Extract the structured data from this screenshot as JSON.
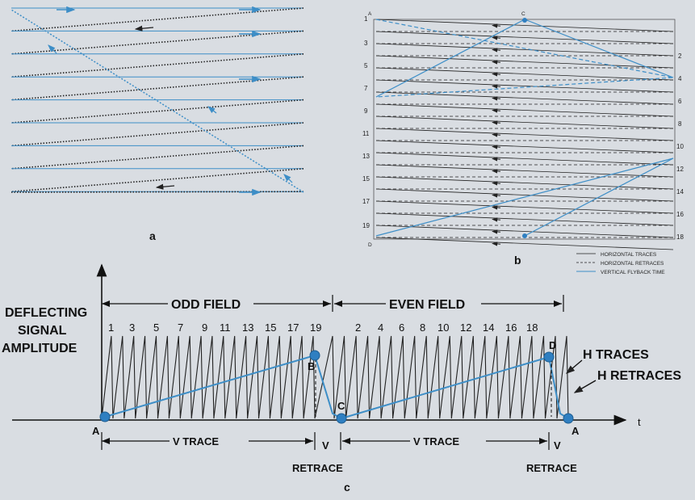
{
  "colors": {
    "background": "#d9dde2",
    "scan_blue": "#3d8ec7",
    "ink": "#222222",
    "dot_fill": "#2f7fc1"
  },
  "panel_a": {
    "caption": "a"
  },
  "panel_b": {
    "caption": "b",
    "corner_labels": [
      "A",
      "C",
      "D"
    ],
    "left_numbers": [
      "1",
      "3",
      "5",
      "7",
      "9",
      "11",
      "13",
      "15",
      "17",
      "19"
    ],
    "right_numbers": [
      "2",
      "4",
      "6",
      "8",
      "10",
      "12",
      "14",
      "16",
      "18"
    ],
    "legend": [
      "HORIZONTAL TRACES",
      "HORIZONTAL RETRACES",
      "VERTICAL FLYBACK TIME"
    ]
  },
  "panel_c": {
    "caption": "c",
    "y_label_lines": [
      "DEFLECTING",
      "SIGNAL",
      "AMPLITUDE"
    ],
    "x_axis_label": "t",
    "odd_field": "ODD FIELD",
    "even_field": "EVEN FIELD",
    "odd_numbers": [
      "1",
      "3",
      "5",
      "7",
      "9",
      "11",
      "13",
      "15",
      "17",
      "19"
    ],
    "even_numbers": [
      "2",
      "4",
      "6",
      "8",
      "10",
      "12",
      "14",
      "16",
      "18"
    ],
    "points": [
      "A",
      "B",
      "C",
      "D",
      "A"
    ],
    "v_trace": "V TRACE",
    "v_short": "V",
    "retrace": "RETRACE",
    "h_traces": "H TRACES",
    "h_retraces": "H RETRACES"
  }
}
